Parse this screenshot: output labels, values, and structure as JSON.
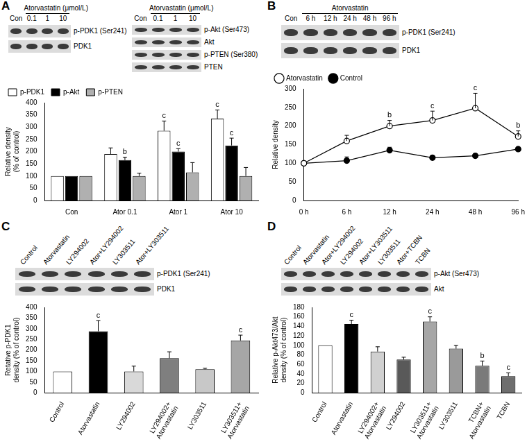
{
  "chart_data": [
    {
      "panel": "A",
      "type": "bar",
      "blots": [
        {
          "header": "Atorvastatin (μmol/L)",
          "lanes": [
            "Con",
            "0.1",
            "1",
            "10"
          ],
          "rows": [
            "p-PDK1 (Ser241)",
            "PDK1"
          ]
        },
        {
          "header": "Atorvastatin (μmol/L)",
          "lanes": [
            "Con",
            "0.1",
            "1",
            "10"
          ],
          "rows": [
            "p-Akt (Ser473)",
            "Akt",
            "p-PTEN (Ser380)",
            "PTEN"
          ]
        }
      ],
      "categories": [
        "Con",
        "Ator 0.1",
        "Ator 1",
        "Ator 10"
      ],
      "series": [
        {
          "name": "p-PDK1",
          "color": "#ffffff",
          "values": [
            100,
            190,
            285,
            335
          ],
          "error": [
            0,
            25,
            40,
            35
          ],
          "significance": [
            null,
            null,
            "c",
            "c"
          ]
        },
        {
          "name": "p-Akt",
          "color": "#000000",
          "values": [
            100,
            165,
            200,
            225
          ],
          "error": [
            0,
            12,
            12,
            30
          ],
          "significance": [
            null,
            "b",
            "c",
            "c"
          ]
        },
        {
          "name": "p-PTEN",
          "color": "#b0b0b0",
          "values": [
            100,
            100,
            115,
            100
          ],
          "error": [
            0,
            12,
            40,
            35
          ]
        }
      ],
      "y_label": "Relative density (% of control)",
      "ylim": [
        0,
        400
      ],
      "yticks": [
        0,
        50,
        100,
        150,
        200,
        250,
        300,
        350,
        400
      ],
      "grid": false,
      "legend": "top-left"
    },
    {
      "panel": "B",
      "type": "line",
      "blots": [
        {
          "header": "Atorvastatin",
          "lanes": [
            "Con",
            "6 h",
            "12 h",
            "24 h",
            "48 h",
            "96 h"
          ],
          "rows": [
            "p-PDK1 (Ser241)",
            "PDK1"
          ]
        }
      ],
      "categories": [
        "0 h",
        "6 h",
        "12 h",
        "24 h",
        "48 h",
        "96 h"
      ],
      "series": [
        {
          "name": "Atorvastatin",
          "color": "#000000",
          "marker": "open_circle",
          "values": [
            100,
            160,
            200,
            215,
            248,
            172
          ],
          "error": [
            0,
            15,
            15,
            25,
            40,
            15
          ],
          "significance": [
            null,
            null,
            "b",
            "c",
            "c",
            "b"
          ]
        },
        {
          "name": "Control",
          "color": "#000000",
          "marker": "circle",
          "values": [
            100,
            107,
            135,
            115,
            120,
            138
          ],
          "error": [
            0,
            10,
            8,
            5,
            5,
            5
          ]
        }
      ],
      "y_label": "Relative density",
      "ylim": [
        0,
        300
      ],
      "yticks": [
        0,
        50,
        100,
        150,
        200,
        250,
        300
      ],
      "grid": false,
      "legend": "top-left"
    },
    {
      "panel": "C",
      "type": "bar",
      "blots": [
        {
          "lanes": [
            "Control",
            "Atorvastatin",
            "LY294002",
            "Ator+LY294002",
            "LY303511",
            "Ator+LY303511"
          ],
          "rows": [
            "p-PDK1 (Ser241)",
            "PDK1"
          ]
        }
      ],
      "categories": [
        "Control",
        "Atorvastatin",
        "LY294002",
        "LY294002+ Atorvastatin",
        "LY303511",
        "LY303511+ Atorvastatin"
      ],
      "values": [
        100,
        288,
        100,
        162,
        110,
        245
      ],
      "error": [
        0,
        50,
        25,
        30,
        5,
        25
      ],
      "significance": [
        null,
        "c",
        null,
        null,
        null,
        "c"
      ],
      "colors": [
        "#ffffff",
        "#000000",
        "#d9d9d9",
        "#7f7f7f",
        "#c8c8c8",
        "#a6a6a6"
      ],
      "y_label": "Retative p-PDK1 density (% of control)",
      "ylim": [
        0,
        400
      ],
      "yticks": [
        0,
        50,
        100,
        150,
        200,
        250,
        300,
        350,
        400
      ],
      "grid": false
    },
    {
      "panel": "D",
      "type": "bar",
      "blots": [
        {
          "lanes": [
            "Control",
            "Atorvastatin",
            "Ator+LY294002",
            "LY294002",
            "Ator+LY303511",
            "LY303511",
            "Ator+TCBN",
            "TCBN"
          ],
          "rows": [
            "p-Akt (Ser473)",
            "Akt"
          ]
        }
      ],
      "categories": [
        "Control",
        "Atorvastatin",
        "LY294002+ Atorvastatin",
        "LY294002",
        "LY303511+ Atorvastatin",
        "LY303511",
        "TCBN+ Atorvastatin",
        "TCBN"
      ],
      "values": [
        100,
        145,
        87,
        70,
        150,
        93,
        57,
        35
      ],
      "error": [
        0,
        8,
        10,
        5,
        10,
        7,
        10,
        7
      ],
      "significance": [
        null,
        "c",
        null,
        null,
        "c",
        null,
        "b",
        "c"
      ],
      "colors": [
        "#ffffff",
        "#000000",
        "#d0d0d0",
        "#595959",
        "#a6a6a6",
        "#9a9a9a",
        "#7a7a7a",
        "#6e6e6e"
      ],
      "y_label": "Relative p-Akt473/Akt density (% of control)",
      "ylim": [
        0,
        180
      ],
      "yticks": [
        0,
        20,
        40,
        60,
        80,
        100,
        120,
        140,
        160,
        180
      ],
      "grid": false
    }
  ]
}
